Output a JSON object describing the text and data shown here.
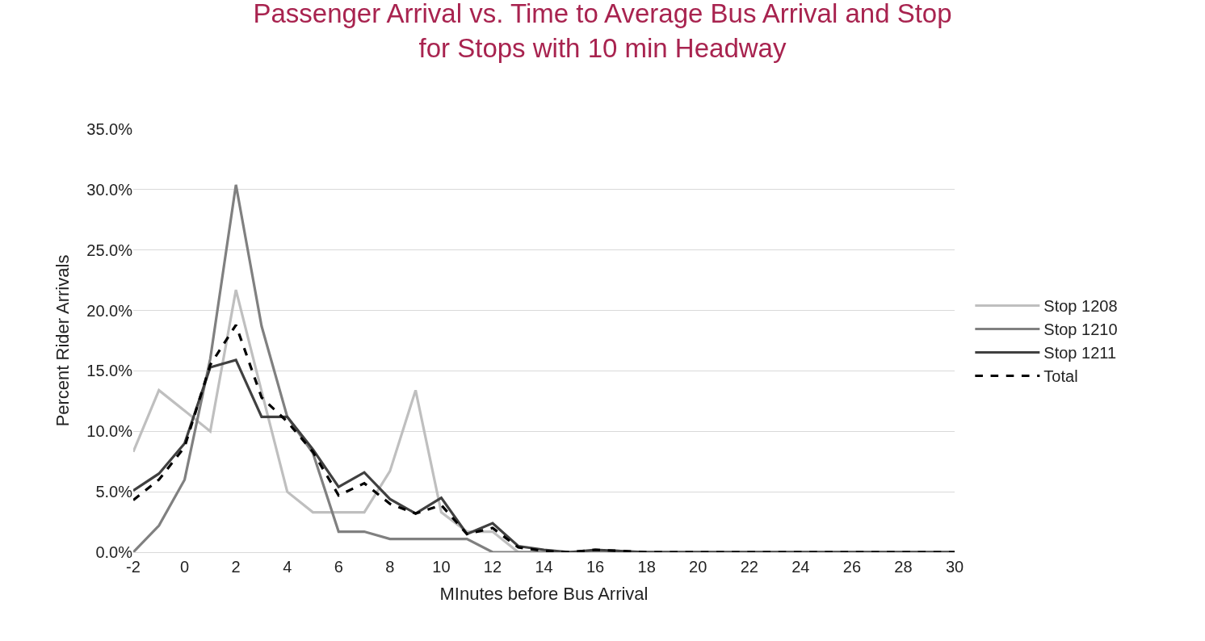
{
  "chart_data": {
    "type": "line",
    "title": "Passenger Arrival vs. Time to Average Bus Arrival and Stop\nfor Stops with 10 min Headway",
    "xlabel": "MInutes before Bus Arrival",
    "ylabel": "Percent Rider Arrivals",
    "x": [
      -2,
      -1,
      0,
      1,
      2,
      3,
      4,
      5,
      6,
      7,
      8,
      9,
      10,
      11,
      12,
      13,
      14,
      15,
      16,
      17,
      18,
      19,
      20,
      21,
      22,
      23,
      24,
      25,
      26,
      27,
      28,
      29,
      30
    ],
    "series": [
      {
        "name": "Stop 1208",
        "color": "#bfbfbf",
        "line_style": "solid",
        "values": [
          8.3,
          13.4,
          11.7,
          10.0,
          21.7,
          13.3,
          5.0,
          3.3,
          3.3,
          3.3,
          6.7,
          13.4,
          3.3,
          1.7,
          1.7,
          0,
          0,
          0,
          0,
          0,
          0,
          0,
          0,
          0,
          0,
          0,
          0,
          0,
          0,
          0,
          0,
          0,
          0
        ]
      },
      {
        "name": "Stop 1210",
        "color": "#808080",
        "line_style": "solid",
        "values": [
          0,
          2.2,
          6.0,
          16.0,
          30.4,
          18.7,
          11.2,
          8.2,
          1.7,
          1.7,
          1.1,
          1.1,
          1.1,
          1.1,
          0,
          0,
          0,
          0,
          0,
          0,
          0,
          0,
          0,
          0,
          0,
          0,
          0,
          0,
          0,
          0,
          0,
          0,
          0
        ]
      },
      {
        "name": "Stop 1211",
        "color": "#404040",
        "line_style": "solid",
        "values": [
          5.1,
          6.5,
          9.0,
          15.3,
          15.9,
          11.2,
          11.2,
          8.5,
          5.4,
          6.6,
          4.4,
          3.2,
          4.5,
          1.5,
          2.4,
          0.5,
          0.2,
          0,
          0.2,
          0.1,
          0,
          0,
          0,
          0,
          0,
          0,
          0,
          0,
          0,
          0,
          0,
          0,
          0
        ]
      },
      {
        "name": "Total",
        "color": "#000000",
        "line_style": "dashed",
        "values": [
          4.3,
          6.0,
          8.7,
          15.5,
          18.8,
          12.8,
          10.8,
          8.3,
          4.7,
          5.7,
          4.0,
          3.2,
          3.9,
          1.5,
          2.0,
          0.4,
          0.1,
          0,
          0.2,
          0.1,
          0,
          0,
          0,
          0,
          0,
          0,
          0,
          0,
          0,
          0,
          0,
          0,
          0
        ]
      }
    ],
    "xlim": [
      -2,
      30
    ],
    "xticks": [
      -2,
      0,
      2,
      4,
      6,
      8,
      10,
      12,
      14,
      16,
      18,
      20,
      22,
      24,
      26,
      28,
      30
    ],
    "ylim": [
      0,
      35
    ],
    "yticks": [
      {
        "value": 0,
        "label": "0.0%"
      },
      {
        "value": 5,
        "label": "5.0%"
      },
      {
        "value": 10,
        "label": "10.0%"
      },
      {
        "value": 15,
        "label": "15.0%"
      },
      {
        "value": 20,
        "label": "20.0%"
      },
      {
        "value": 25,
        "label": "25.0%"
      },
      {
        "value": 30,
        "label": "30.0%"
      },
      {
        "value": 35,
        "label": "35.0%"
      }
    ],
    "grid": "y",
    "legend": "right",
    "marker": "none"
  }
}
